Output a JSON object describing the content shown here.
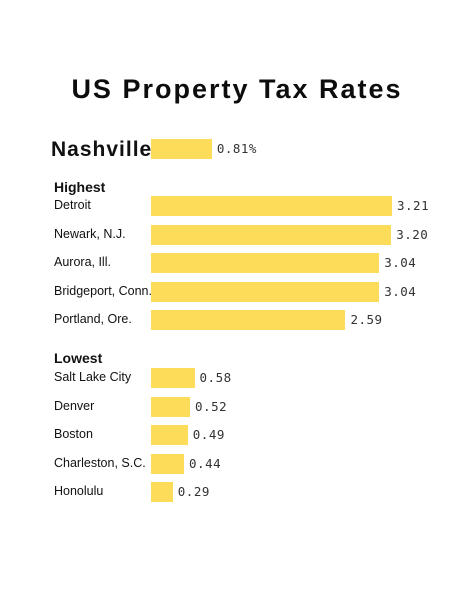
{
  "chart_data": {
    "type": "bar",
    "orientation": "horizontal",
    "title": "US Property Tax Rates",
    "bar_color": "#fddc59",
    "featured": {
      "category": "Nashville",
      "value": 0.81,
      "label": "0.81%"
    },
    "groups": [
      {
        "heading": "Highest",
        "categories": [
          "Detroit",
          "Newark, N.J.",
          "Aurora, Ill.",
          "Bridgeport, Conn.",
          "Portland, Ore."
        ],
        "values": [
          3.21,
          3.2,
          3.04,
          3.04,
          2.59
        ],
        "labels": [
          "3.21",
          "3.20",
          "3.04",
          "3.04",
          "2.59"
        ]
      },
      {
        "heading": "Lowest",
        "categories": [
          "Salt Lake City",
          "Denver",
          "Boston",
          "Charleston, S.C.",
          "Honolulu"
        ],
        "values": [
          0.58,
          0.52,
          0.49,
          0.44,
          0.29
        ],
        "labels": [
          "0.58",
          "0.52",
          "0.49",
          "0.44",
          "0.29"
        ]
      }
    ],
    "xlim": [
      0,
      3.21
    ],
    "grid": false,
    "legend": "none"
  }
}
